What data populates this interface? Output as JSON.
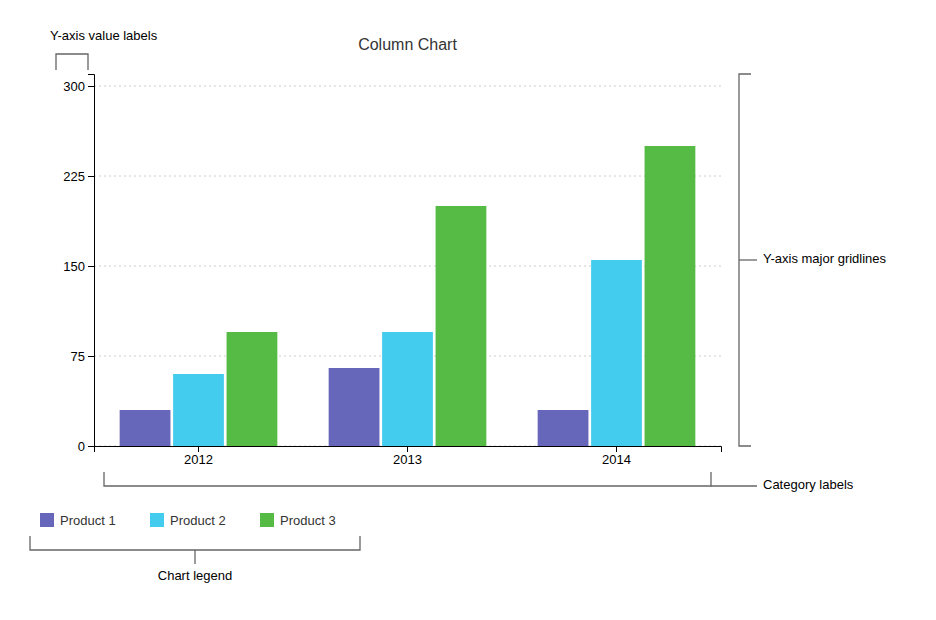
{
  "chart_data": {
    "type": "bar",
    "title": "Column Chart",
    "categories": [
      "2012",
      "2013",
      "2014"
    ],
    "series": [
      {
        "name": "Product 1",
        "values": [
          30,
          65,
          30
        ],
        "color": "#6666bb"
      },
      {
        "name": "Product 2",
        "values": [
          60,
          95,
          155
        ],
        "color": "#44ccee"
      },
      {
        "name": "Product 3",
        "values": [
          95,
          200,
          250
        ],
        "color": "#55bb44"
      }
    ],
    "ylim": [
      0,
      310
    ],
    "yticks": [
      0,
      75,
      150,
      225,
      300
    ],
    "grid": true,
    "legend": "bottom",
    "annotations": [
      "Y-axis value labels",
      "Y-axis major gridlines",
      "Category labels",
      "Chart legend"
    ]
  }
}
